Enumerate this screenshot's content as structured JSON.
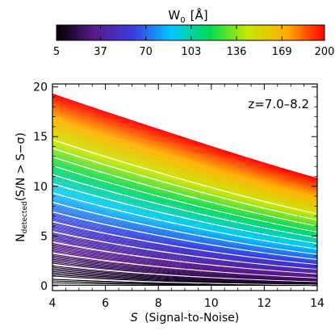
{
  "chart_data": {
    "type": "line",
    "annotation": "z=7.0–8.2",
    "xlabel_symbol": "S",
    "xlabel_text": "(Signal-to-Noise)",
    "ylabel_main": "N",
    "ylabel_sub": "detected",
    "ylabel_rest": "(S/N > S−σ)",
    "xlim": [
      4,
      14
    ],
    "ylim": [
      -0.5,
      20.3
    ],
    "x_ticks": [
      4,
      6,
      8,
      10,
      12,
      14
    ],
    "y_ticks": [
      0,
      5,
      10,
      15,
      20
    ],
    "grid": false,
    "colorbar": {
      "label_main": "W",
      "label_sub": "0",
      "label_unit": "[Å]",
      "range": [
        5,
        200
      ],
      "ticks": [
        "5",
        "37",
        "70",
        "103",
        "136",
        "169",
        "200"
      ],
      "colormap": "rainbow",
      "colors": [
        "#000000",
        "#5a1a8c",
        "#3a3ce0",
        "#00c8ff",
        "#00dd55",
        "#c8e600",
        "#ffb000",
        "#ff0000"
      ]
    },
    "curve_family": {
      "parameter_range": [
        5,
        200
      ],
      "count": 180,
      "y_at_x4_range": [
        0.05,
        19.3
      ],
      "y_at_x14_range": [
        0.02,
        10.8
      ],
      "white_highlight_every": 9
    },
    "series": [
      {
        "W0": 5,
        "x": [
          4,
          6,
          8,
          10,
          12,
          14
        ],
        "y": [
          0.05,
          0.04,
          0.04,
          0.03,
          0.03,
          0.02
        ]
      },
      {
        "W0": 37,
        "x": [
          4,
          6,
          8,
          10,
          12,
          14
        ],
        "y": [
          3.0,
          2.2,
          1.7,
          1.3,
          1.1,
          0.9
        ]
      },
      {
        "W0": 70,
        "x": [
          4,
          6,
          8,
          10,
          12,
          14
        ],
        "y": [
          7.5,
          5.8,
          4.6,
          3.8,
          3.2,
          2.7
        ]
      },
      {
        "W0": 103,
        "x": [
          4,
          6,
          8,
          10,
          12,
          14
        ],
        "y": [
          11.5,
          9.4,
          7.8,
          6.6,
          5.7,
          5.0
        ]
      },
      {
        "W0": 136,
        "x": [
          4,
          6,
          8,
          10,
          12,
          14
        ],
        "y": [
          14.8,
          12.6,
          10.8,
          9.4,
          8.3,
          7.4
        ]
      },
      {
        "W0": 169,
        "x": [
          4,
          6,
          8,
          10,
          12,
          14
        ],
        "y": [
          17.3,
          15.2,
          13.4,
          11.8,
          10.6,
          9.5
        ]
      },
      {
        "W0": 200,
        "x": [
          4,
          6,
          8,
          10,
          12,
          14
        ],
        "y": [
          19.3,
          17.3,
          15.4,
          13.6,
          12.1,
          10.8
        ]
      }
    ]
  }
}
